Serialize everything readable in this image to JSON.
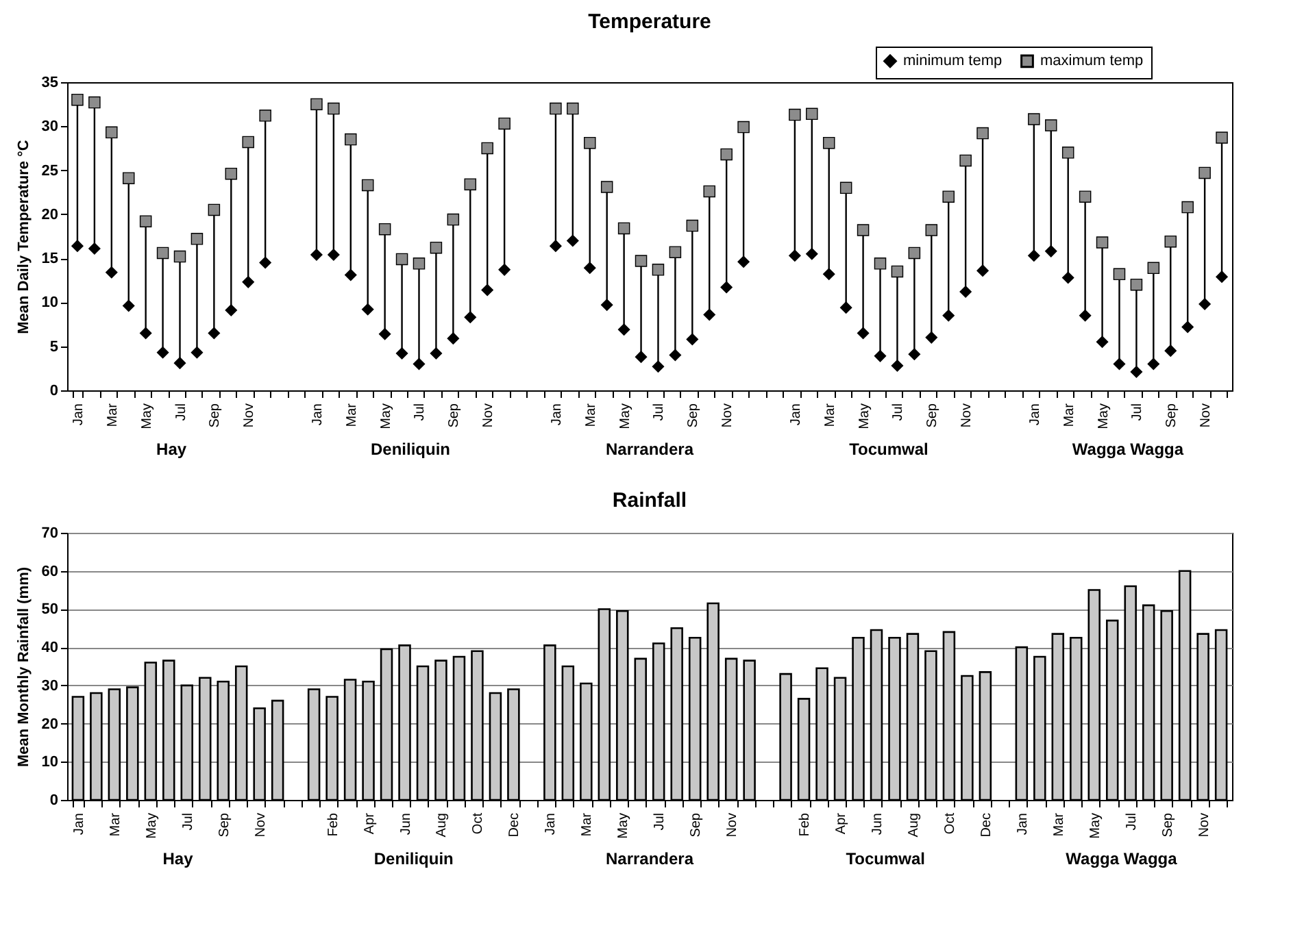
{
  "chart_data": [
    {
      "type": "scatter",
      "title": "Temperature",
      "ylabel": "Mean Daily Temperature °C",
      "categories": [
        "Jan",
        null,
        "Mar",
        null,
        "May",
        null,
        "Jul",
        null,
        "Sep",
        null,
        "Nov",
        null,
        null,
        null,
        "Jan",
        null,
        "Mar",
        null,
        "May",
        null,
        "Jul",
        null,
        "Sep",
        null,
        "Nov",
        null,
        null,
        null,
        "Jan",
        null,
        "Mar",
        null,
        "May",
        null,
        "Jul",
        null,
        "Sep",
        null,
        "Nov",
        null,
        null,
        null,
        "Jan",
        null,
        "Mar",
        null,
        "May",
        null,
        "Jul",
        null,
        "Sep",
        null,
        "Nov",
        null,
        null,
        null,
        "Jan",
        null,
        "Mar",
        null,
        "May",
        null,
        "Jul",
        null,
        "Sep",
        null,
        "Nov",
        null
      ],
      "series": [
        {
          "name": "minimum temp",
          "color": "#000000",
          "marker": "diamond",
          "values": [
            16.4,
            16.1,
            13.4,
            9.6,
            6.5,
            4.3,
            3.1,
            4.3,
            6.5,
            9.1,
            12.3,
            14.5,
            null,
            null,
            15.4,
            15.4,
            13.1,
            9.2,
            6.4,
            4.2,
            3.0,
            4.2,
            5.9,
            8.3,
            11.4,
            13.7,
            null,
            null,
            16.4,
            17.0,
            13.9,
            9.7,
            6.9,
            3.8,
            2.7,
            4.0,
            5.8,
            8.6,
            11.7,
            14.6,
            null,
            null,
            15.3,
            15.5,
            13.2,
            9.4,
            6.5,
            3.9,
            2.8,
            4.1,
            6.0,
            8.5,
            11.2,
            13.6,
            null,
            null,
            15.3,
            15.8,
            12.8,
            8.5,
            5.5,
            3.0,
            2.1,
            3.0,
            4.5,
            7.2,
            9.8,
            12.9
          ]
        },
        {
          "name": "maximum temp",
          "color": "#8c8c8c",
          "marker": "square",
          "values": [
            33.0,
            32.7,
            29.3,
            24.1,
            19.2,
            15.6,
            15.2,
            17.2,
            20.5,
            24.6,
            28.2,
            31.2,
            null,
            null,
            32.5,
            32.0,
            28.5,
            23.3,
            18.3,
            14.9,
            14.4,
            16.2,
            19.4,
            23.4,
            27.5,
            30.3,
            null,
            null,
            32.0,
            32.0,
            28.1,
            23.1,
            18.4,
            14.7,
            13.7,
            15.7,
            18.7,
            22.6,
            26.8,
            29.9,
            null,
            null,
            31.3,
            31.4,
            28.1,
            23.0,
            18.2,
            14.4,
            13.5,
            15.6,
            18.2,
            22.0,
            26.1,
            29.2,
            null,
            null,
            30.8,
            30.1,
            27.0,
            22.0,
            16.8,
            13.2,
            12.0,
            13.9,
            16.9,
            20.8,
            24.7,
            28.7
          ]
        }
      ],
      "ylim": [
        0,
        35
      ],
      "yticks": [
        0,
        5,
        10,
        15,
        20,
        25,
        30,
        35
      ],
      "legend": "top right",
      "annotations": [
        "Hay",
        "Deniliquin",
        "Narrandera",
        "Tocumwal",
        "Wagga Wagga"
      ]
    },
    {
      "type": "bar",
      "title": "Rainfall",
      "ylabel": "Mean Monthly Rainfall (mm)",
      "categories": [
        "Jan",
        null,
        "Mar",
        null,
        "May",
        null,
        "Jul",
        null,
        "Sep",
        null,
        "Nov",
        null,
        null,
        null,
        "Feb",
        null,
        "Apr",
        null,
        "Jun",
        null,
        "Aug",
        null,
        "Oct",
        null,
        "Dec",
        null,
        "Jan",
        null,
        "Mar",
        null,
        "May",
        null,
        "Jul",
        null,
        "Sep",
        null,
        "Nov",
        null,
        null,
        null,
        "Feb",
        null,
        "Apr",
        null,
        "Jun",
        null,
        "Aug",
        null,
        "Oct",
        null,
        "Dec",
        null,
        "Jan",
        null,
        "Mar",
        null,
        "May",
        null,
        "Jul",
        null,
        "Sep",
        null,
        "Nov",
        null
      ],
      "series": [
        {
          "color": "#c8c8c8",
          "values": [
            27,
            28,
            29,
            29.5,
            36,
            36.5,
            30,
            32,
            31,
            35,
            24,
            26,
            null,
            29,
            27,
            31.5,
            31,
            39.5,
            40.5,
            35,
            36.5,
            37.5,
            39,
            28,
            29,
            null,
            40.5,
            35,
            30.5,
            50,
            49.5,
            37,
            41,
            45,
            42.5,
            51.5,
            37,
            36.5,
            null,
            33,
            26.5,
            34.5,
            32,
            42.5,
            44.5,
            42.5,
            43.5,
            39,
            44,
            32.5,
            33.5,
            null,
            40,
            37.5,
            43.5,
            42.5,
            55,
            47,
            56,
            51,
            49.5,
            60,
            43.5,
            44.5
          ]
        }
      ],
      "ylim": [
        0,
        70
      ],
      "yticks": [
        0,
        10,
        20,
        30,
        40,
        50,
        60,
        70
      ],
      "grid": "y",
      "annotations": [
        "Hay",
        "Deniliquin",
        "Narrandera",
        "Tocumwal",
        "Wagga Wagga"
      ]
    }
  ]
}
